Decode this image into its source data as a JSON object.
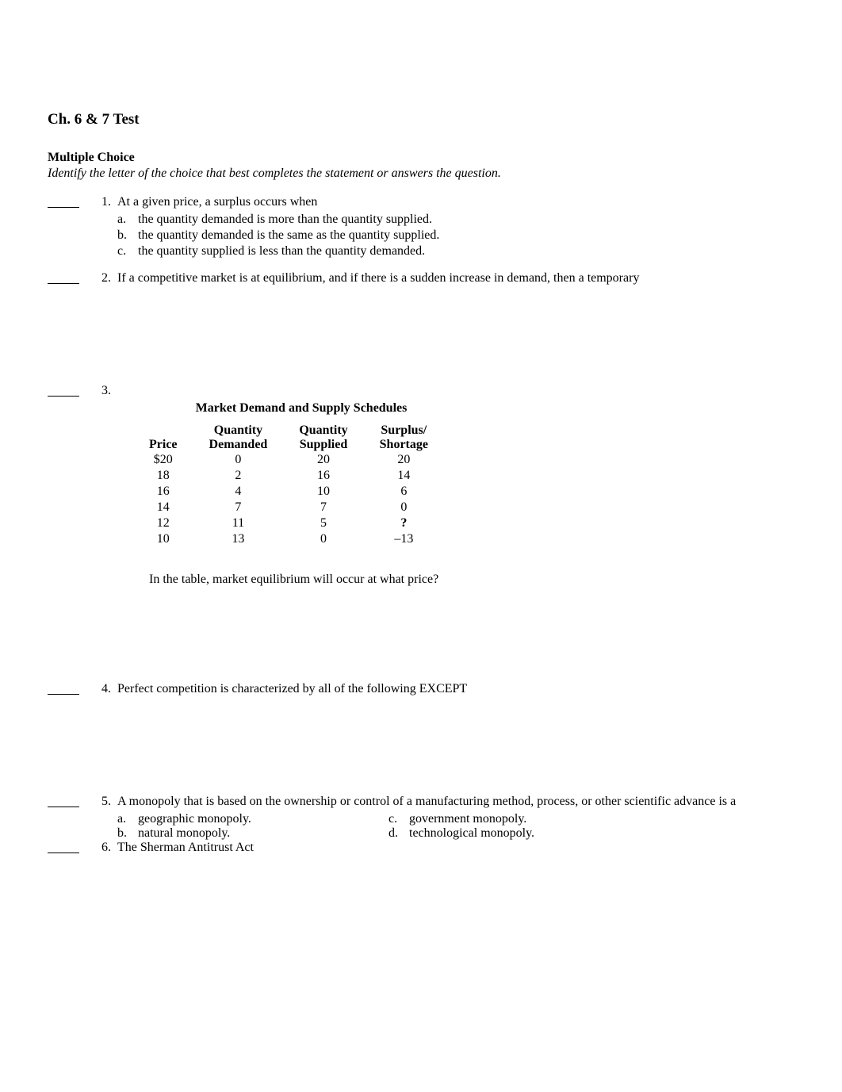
{
  "title": "Ch. 6 & 7 Test",
  "section_header": "Multiple Choice",
  "instructions": "Identify the letter of the choice that best completes the statement or answers the question.",
  "q1": {
    "num": "1.",
    "text": "At a given price, a surplus occurs when",
    "a": "the quantity demanded is more than the quantity supplied.",
    "b": "the quantity demanded is the same as the quantity supplied.",
    "c": "the quantity supplied is less than the quantity demanded."
  },
  "q2": {
    "num": "2.",
    "text": "If a competitive market is at equilibrium, and if there is a sudden increase in demand, then a temporary"
  },
  "q3": {
    "num": "3.",
    "table_title": "Market Demand and Supply Schedules",
    "headers": {
      "price": "Price",
      "qd_top": "Quantity",
      "qd_bot": "Demanded",
      "qs_top": "Quantity",
      "qs_bot": "Supplied",
      "ss_top": "Surplus/",
      "ss_bot": "Shortage"
    },
    "rows": [
      {
        "price": "$20",
        "qd": "0",
        "qs": "20",
        "ss": "20"
      },
      {
        "price": "18",
        "qd": "2",
        "qs": "16",
        "ss": "14"
      },
      {
        "price": "16",
        "qd": "4",
        "qs": "10",
        "ss": "6"
      },
      {
        "price": "14",
        "qd": "7",
        "qs": "7",
        "ss": "0"
      },
      {
        "price": "12",
        "qd": "11",
        "qs": "5",
        "ss": "?"
      },
      {
        "price": "10",
        "qd": "13",
        "qs": "0",
        "ss": "–13"
      }
    ],
    "note": "In the table, market equilibrium will occur at what price?"
  },
  "q4": {
    "num": "4.",
    "text": "Perfect competition is characterized by all of the following EXCEPT"
  },
  "q5": {
    "num": "5.",
    "text": "A monopoly that is based on the ownership or control of a manufacturing method, process, or other scientific advance is a",
    "a": "geographic monopoly.",
    "b": "natural monopoly.",
    "c": "government monopoly.",
    "d": "technological monopoly."
  },
  "q6": {
    "num": "6.",
    "text": "The Sherman Antitrust Act"
  },
  "letters": {
    "a": "a.",
    "b": "b.",
    "c": "c.",
    "d": "d."
  }
}
